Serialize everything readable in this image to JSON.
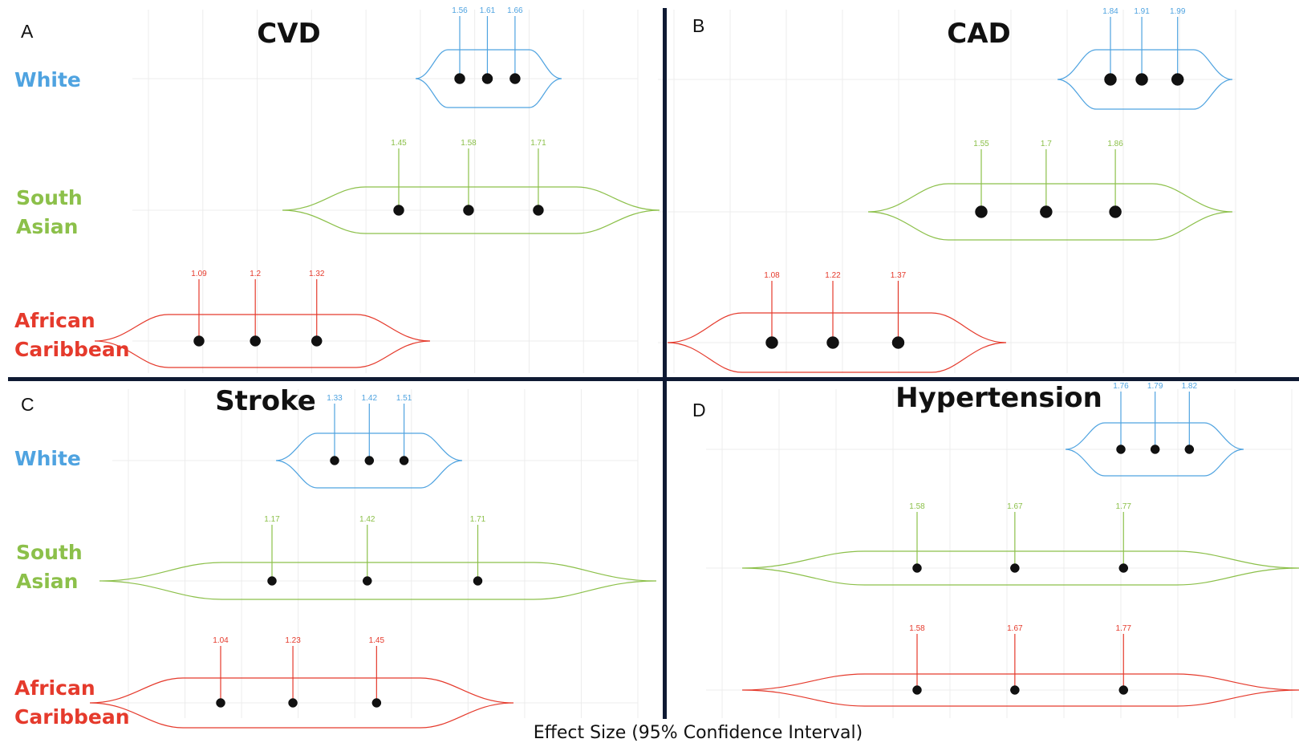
{
  "colors": {
    "white": "#4fa3e0",
    "south_asian": "#8cc04a",
    "african_caribbean": "#e53a2c",
    "divider": "#0f1a33"
  },
  "x_caption": "Effect Size (95% Confidence Interval)",
  "chart_data": [
    {
      "type": "violin",
      "letter": "A",
      "title": "CVD",
      "series": [
        {
          "name": "White",
          "label_lines": [
            "White"
          ],
          "lower": 1.56,
          "estimate": 1.61,
          "upper": 1.66
        },
        {
          "name": "South Asian",
          "label_lines": [
            "South",
            "Asian"
          ],
          "lower": 1.45,
          "estimate": 1.58,
          "upper": 1.71
        },
        {
          "name": "African Caribbean",
          "label_lines": [
            "African",
            "Caribbean"
          ],
          "lower": 1.09,
          "estimate": 1.2,
          "upper": 1.32
        }
      ]
    },
    {
      "type": "violin",
      "letter": "B",
      "title": "CAD",
      "series": [
        {
          "name": "White",
          "label_lines": [],
          "lower": 1.84,
          "estimate": 1.91,
          "upper": 1.99
        },
        {
          "name": "South Asian",
          "label_lines": [],
          "lower": 1.55,
          "estimate": 1.7,
          "upper": 1.86
        },
        {
          "name": "African Caribbean",
          "label_lines": [],
          "lower": 1.08,
          "estimate": 1.22,
          "upper": 1.37
        }
      ]
    },
    {
      "type": "violin",
      "letter": "C",
      "title": "Stroke",
      "series": [
        {
          "name": "White",
          "label_lines": [
            "White"
          ],
          "lower": 1.33,
          "estimate": 1.42,
          "upper": 1.51
        },
        {
          "name": "South Asian",
          "label_lines": [
            "South",
            "Asian"
          ],
          "lower": 1.17,
          "estimate": 1.42,
          "upper": 1.71
        },
        {
          "name": "African Caribbean",
          "label_lines": [
            "African",
            "Caribbean"
          ],
          "lower": 1.04,
          "estimate": 1.23,
          "upper": 1.45
        }
      ]
    },
    {
      "type": "violin",
      "letter": "D",
      "title": "Hypertension",
      "series": [
        {
          "name": "White",
          "label_lines": [],
          "lower": 1.76,
          "estimate": 1.79,
          "upper": 1.82
        },
        {
          "name": "South Asian",
          "label_lines": [],
          "lower": 1.58,
          "estimate": 1.67,
          "upper": 1.77
        },
        {
          "name": "African Caribbean",
          "label_lines": [],
          "lower": 1.58,
          "estimate": 1.67,
          "upper": 1.77
        }
      ]
    }
  ]
}
